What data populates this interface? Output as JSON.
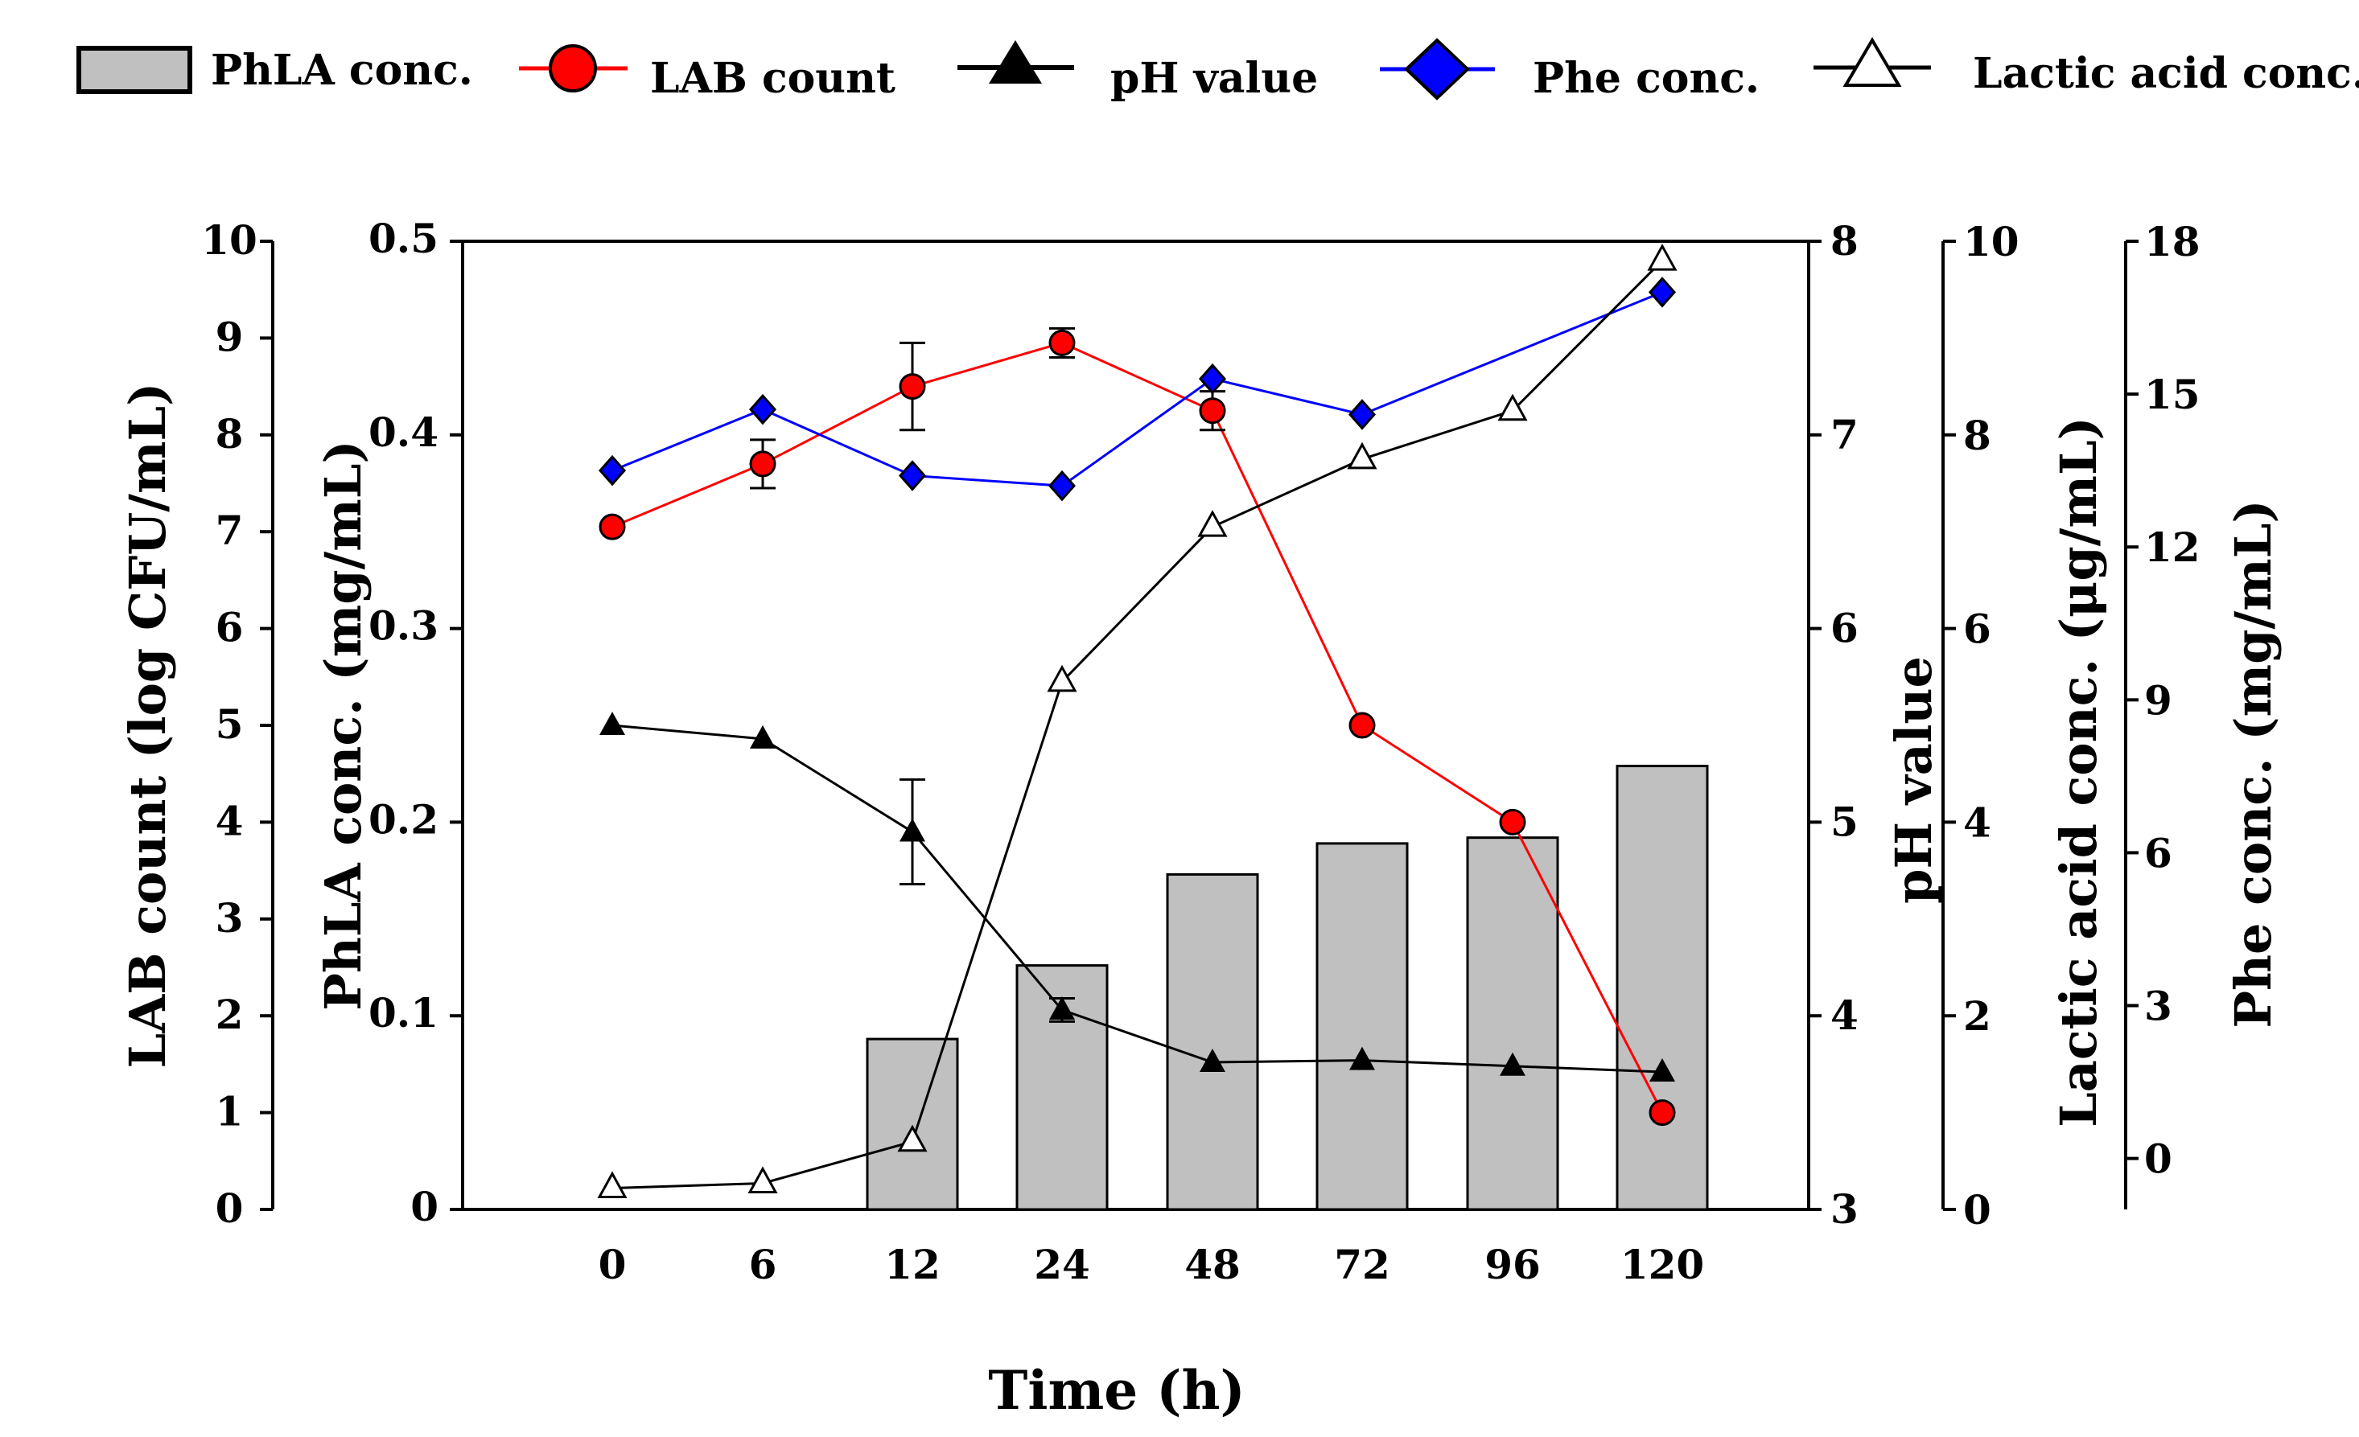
{
  "chart_data": {
    "type": "bar+line",
    "categories": [
      "0",
      "6",
      "12",
      "24",
      "48",
      "72",
      "96",
      "120"
    ],
    "xlabel": "Time (h)",
    "legend": [
      {
        "key": "phla",
        "label": "PhLA conc.",
        "marker": "bar",
        "color": "#c0c0c0"
      },
      {
        "key": "lab",
        "label": "LAB count",
        "marker": "circle",
        "color": "#ff0000"
      },
      {
        "key": "ph",
        "label": "pH value",
        "marker": "triangle",
        "color": "#000000"
      },
      {
        "key": "phe",
        "label": "Phe conc.",
        "marker": "diamond",
        "color": "#0000ff"
      },
      {
        "key": "lactic",
        "label": "Lactic acid conc.",
        "marker": "open-triangle",
        "color": "#000000"
      }
    ],
    "axes": {
      "lab": {
        "label": "LAB count (log CFU/mL)",
        "range": [
          0,
          10
        ],
        "ticks": [
          "0",
          "1",
          "2",
          "3",
          "4",
          "5",
          "6",
          "7",
          "8",
          "9",
          "10"
        ]
      },
      "phla": {
        "label": "PhLA conc. (mg/mL)",
        "range": [
          0,
          0.5
        ],
        "ticks": [
          "0",
          "0.1",
          "0.2",
          "0.3",
          "0.4",
          "0.5"
        ]
      },
      "ph": {
        "label": "pH value",
        "range": [
          3,
          8
        ],
        "ticks": [
          "3",
          "4",
          "5",
          "6",
          "7",
          "8"
        ]
      },
      "lactic": {
        "label": "Lactic acid conc. (μg/mL)",
        "range": [
          0,
          10
        ],
        "ticks": [
          "0",
          "2",
          "4",
          "6",
          "8",
          "10"
        ]
      },
      "phe": {
        "label": "Phe conc. (mg/mL)",
        "range": [
          -1,
          18
        ],
        "ticks": [
          "0",
          "3",
          "6",
          "9",
          "12",
          "15",
          "18"
        ]
      }
    },
    "series": [
      {
        "name": "PhLA conc.",
        "axis": "phla",
        "type": "bar",
        "color": "#c0c0c0",
        "values": [
          null,
          null,
          0.088,
          0.126,
          0.173,
          0.189,
          0.192,
          0.229
        ]
      },
      {
        "name": "LAB count",
        "axis": "lab",
        "type": "line",
        "color": "#ff0000",
        "marker": "circle",
        "values": [
          7.05,
          7.7,
          8.5,
          8.95,
          8.25,
          5.0,
          4.0,
          1.0
        ],
        "errors": [
          0,
          0.25,
          0.45,
          0.15,
          0.2,
          0,
          0,
          0
        ]
      },
      {
        "name": "pH value",
        "axis": "ph",
        "type": "line",
        "color": "#000000",
        "marker": "triangle",
        "values": [
          5.5,
          5.43,
          4.95,
          4.03,
          3.76,
          3.77,
          3.74,
          3.71
        ],
        "errors": [
          0,
          0,
          0.27,
          0.06,
          0,
          0,
          0,
          0
        ]
      },
      {
        "name": "Phe conc.",
        "axis": "phe",
        "type": "line",
        "color": "#0000ff",
        "marker": "diamond",
        "values": [
          13.5,
          14.7,
          13.4,
          13.2,
          15.3,
          14.6,
          null,
          17.0
        ]
      },
      {
        "name": "Lactic acid conc.",
        "axis": "lactic",
        "type": "line",
        "color": "#000000",
        "marker": "open-triangle",
        "values": [
          0.22,
          0.27,
          0.7,
          5.45,
          7.05,
          7.75,
          8.25,
          9.8
        ]
      }
    ]
  }
}
